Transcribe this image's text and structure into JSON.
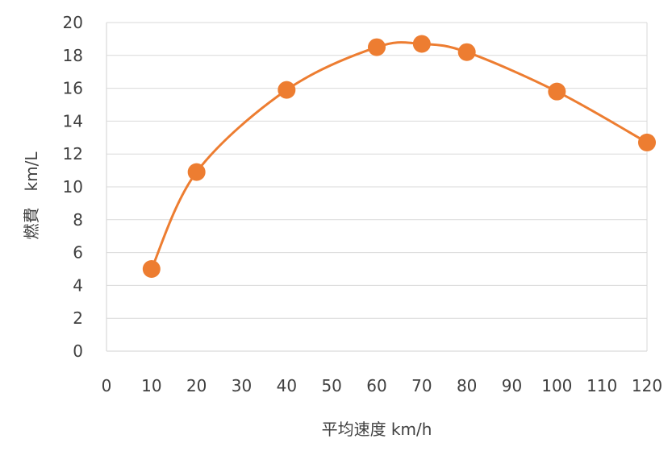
{
  "chart_data": {
    "type": "scatter",
    "title": "",
    "xlabel": "平均速度 km/h",
    "ylabel": "燃費　km/L",
    "xlim": [
      0,
      120
    ],
    "ylim": [
      0,
      20
    ],
    "xticks": [
      0,
      10,
      20,
      30,
      40,
      50,
      60,
      70,
      80,
      90,
      100,
      110,
      120
    ],
    "yticks": [
      0,
      2,
      4,
      6,
      8,
      10,
      12,
      14,
      16,
      18,
      20
    ],
    "grid": "horizontal",
    "legend": "none",
    "line_style": "smoothed",
    "series": [
      {
        "color": "#ED7D31",
        "x": [
          10,
          20,
          40,
          60,
          70,
          80,
          100,
          120
        ],
        "y": [
          5.0,
          10.9,
          15.9,
          18.5,
          18.7,
          18.2,
          15.8,
          12.7
        ]
      }
    ]
  }
}
